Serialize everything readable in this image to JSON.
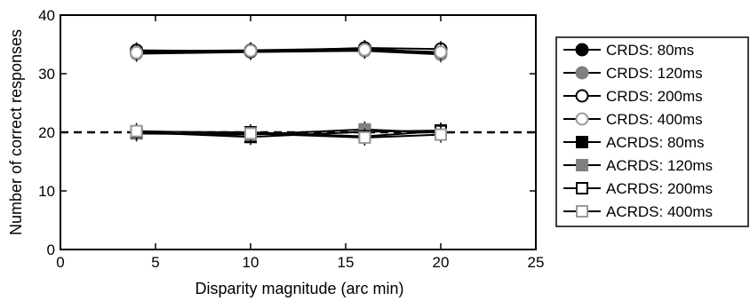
{
  "chart_data": {
    "type": "line",
    "xlabel": "Disparity magnitude (arc min)",
    "ylabel": "Number of correct responses",
    "xlim": [
      0,
      25
    ],
    "ylim": [
      0,
      40
    ],
    "xticks": [
      0,
      5,
      10,
      15,
      20,
      25
    ],
    "yticks": [
      0,
      10,
      20,
      30,
      40
    ],
    "xtick_labels": [
      "0",
      "5",
      "10",
      "15",
      "20",
      "25"
    ],
    "ytick_labels": [
      "0",
      "10",
      "20",
      "30",
      "40"
    ],
    "reference_line": {
      "y": 20,
      "style": "dashed"
    },
    "grid": false,
    "legend_position": "right-outside",
    "x": [
      4,
      10,
      16,
      20
    ],
    "series": [
      {
        "name": "CRDS: 80ms",
        "values": [
          33.8,
          34.0,
          34.3,
          33.5
        ],
        "marker": "circle",
        "fill": "#000000",
        "stroke": "#000000"
      },
      {
        "name": "CRDS: 120ms",
        "values": [
          33.4,
          33.7,
          33.9,
          33.3
        ],
        "marker": "circle",
        "fill": "#808080",
        "stroke": "#808080"
      },
      {
        "name": "CRDS: 200ms",
        "values": [
          34.0,
          33.8,
          34.4,
          34.2
        ],
        "marker": "circle",
        "fill": "#ffffff",
        "stroke": "#000000"
      },
      {
        "name": "CRDS: 400ms",
        "values": [
          33.6,
          33.9,
          34.1,
          33.7
        ],
        "marker": "circle",
        "fill": "#ffffff",
        "stroke": "#999999"
      },
      {
        "name": "ACRDS: 80ms",
        "values": [
          20.0,
          19.2,
          20.1,
          20.3
        ],
        "marker": "square",
        "fill": "#000000",
        "stroke": "#000000"
      },
      {
        "name": "ACRDS: 120ms",
        "values": [
          19.8,
          19.6,
          20.5,
          19.9
        ],
        "marker": "square",
        "fill": "#808080",
        "stroke": "#808080"
      },
      {
        "name": "ACRDS: 200ms",
        "values": [
          20.1,
          20.0,
          19.3,
          20.2
        ],
        "marker": "square",
        "fill": "#ffffff",
        "stroke": "#000000"
      },
      {
        "name": "ACRDS: 400ms",
        "values": [
          20.2,
          19.8,
          19.1,
          19.6
        ],
        "marker": "square",
        "fill": "#ffffff",
        "stroke": "#999999"
      }
    ]
  }
}
